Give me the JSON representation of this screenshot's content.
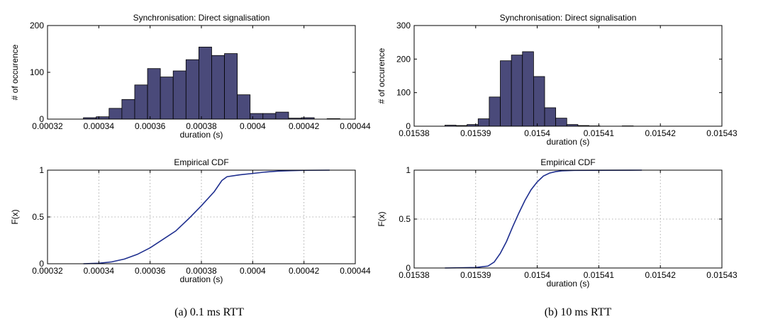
{
  "captions": [
    "(a)  0.1 ms RTT",
    "(b)  10 ms RTT"
  ],
  "colors": {
    "bar_fill": "#4a4a7a",
    "bar_edge": "#000000",
    "cdf_line": "#1f2f8f"
  },
  "chart_data": [
    {
      "type": "bar",
      "title": "Synchronisation: Direct signalisation",
      "xlabel": "duration (s)",
      "ylabel": "# of occurence",
      "xlim": [
        0.00032,
        0.00044
      ],
      "ylim": [
        0,
        200
      ],
      "xticks": [
        0.00032,
        0.00034,
        0.00036,
        0.00038,
        0.0004,
        0.00042,
        0.00044
      ],
      "xtick_labels": [
        "0.00032",
        "0.00034",
        "0.00036",
        "0.00038",
        "0.0004",
        "0.00042",
        "0.00044"
      ],
      "yticks": [
        0,
        100,
        200
      ],
      "ytick_labels": [
        "0",
        "100",
        "200"
      ],
      "grid": false,
      "bin_edges": [
        0.000334,
        0.000339,
        0.000344,
        0.000349,
        0.000354,
        0.000359,
        0.000364,
        0.000369,
        0.000374,
        0.000379,
        0.000384,
        0.000389,
        0.000394,
        0.000399,
        0.000404,
        0.000409,
        0.000414,
        0.000419,
        0.000424,
        0.000429
      ],
      "counts": [
        3,
        5,
        23,
        42,
        73,
        108,
        90,
        103,
        127,
        154,
        136,
        140,
        52,
        12,
        12,
        15,
        2,
        3,
        0,
        1
      ]
    },
    {
      "type": "line",
      "title": "Empirical CDF",
      "xlabel": "duration (s)",
      "ylabel": "F(x)",
      "xlim": [
        0.00032,
        0.00044
      ],
      "ylim": [
        0,
        1
      ],
      "xticks": [
        0.00032,
        0.00034,
        0.00036,
        0.00038,
        0.0004,
        0.00042,
        0.00044
      ],
      "xtick_labels": [
        "0.00032",
        "0.00034",
        "0.00036",
        "0.00038",
        "0.0004",
        "0.00042",
        "0.00044"
      ],
      "yticks": [
        0,
        0.5,
        1
      ],
      "ytick_labels": [
        "0",
        "0.5",
        "1"
      ],
      "grid": true,
      "x": [
        0.000334,
        0.00034,
        0.000345,
        0.00035,
        0.000355,
        0.00036,
        0.000365,
        0.00037,
        0.000375,
        0.00038,
        0.000385,
        0.000388,
        0.00039,
        0.000395,
        0.0004,
        0.000405,
        0.00041,
        0.000415,
        0.00042,
        0.00043
      ],
      "y": [
        0.0,
        0.005,
        0.02,
        0.05,
        0.1,
        0.17,
        0.26,
        0.35,
        0.48,
        0.62,
        0.77,
        0.89,
        0.93,
        0.95,
        0.965,
        0.98,
        0.99,
        0.995,
        0.998,
        1.0
      ]
    },
    {
      "type": "bar",
      "title": "Synchronisation: Direct signalisation",
      "xlabel": "duration (s)",
      "ylabel": "# of occurence",
      "xlim": [
        0.01538,
        0.01543
      ],
      "ylim": [
        0,
        300
      ],
      "xticks": [
        0.01538,
        0.01539,
        0.0154,
        0.01541,
        0.01542,
        0.01543
      ],
      "xtick_labels": [
        "0.01538",
        "0.01539",
        "0.0154",
        "0.01541",
        "0.01542",
        "0.01543"
      ],
      "yticks": [
        0,
        100,
        200,
        300
      ],
      "ytick_labels": [
        "0",
        "100",
        "200",
        "300"
      ],
      "grid": false,
      "bin_edges": [
        0.015385,
        0.0153868,
        0.0153886,
        0.0153904,
        0.0153922,
        0.015394,
        0.0153958,
        0.0153976,
        0.0153994,
        0.0154012,
        0.015403,
        0.0154048,
        0.0154066,
        0.0154084,
        0.0154102,
        0.015412,
        0.0154138,
        0.0154156,
        0.0154174
      ],
      "counts": [
        3,
        2,
        5,
        22,
        87,
        195,
        212,
        222,
        148,
        55,
        24,
        5,
        2,
        1,
        0,
        0,
        1,
        0,
        0
      ]
    },
    {
      "type": "line",
      "title": "Empirical CDF",
      "xlabel": "duration (s)",
      "ylabel": "F(x)",
      "xlim": [
        0.01538,
        0.01543
      ],
      "ylim": [
        0,
        1
      ],
      "xticks": [
        0.01538,
        0.01539,
        0.0154,
        0.01541,
        0.01542,
        0.01543
      ],
      "xtick_labels": [
        "0.01538",
        "0.01539",
        "0.0154",
        "0.01541",
        "0.01542",
        "0.01543"
      ],
      "yticks": [
        0,
        0.5,
        1
      ],
      "ytick_labels": [
        "0",
        "0.5",
        "1"
      ],
      "grid": true,
      "x": [
        0.015385,
        0.01539,
        0.015392,
        0.015393,
        0.015394,
        0.015395,
        0.015396,
        0.015397,
        0.015398,
        0.015399,
        0.0154,
        0.015401,
        0.015402,
        0.015403,
        0.015404,
        0.015406,
        0.01541,
        0.015417
      ],
      "y": [
        0.0,
        0.005,
        0.02,
        0.06,
        0.15,
        0.27,
        0.42,
        0.56,
        0.69,
        0.8,
        0.88,
        0.94,
        0.97,
        0.985,
        0.993,
        0.998,
        0.999,
        1.0
      ]
    }
  ]
}
